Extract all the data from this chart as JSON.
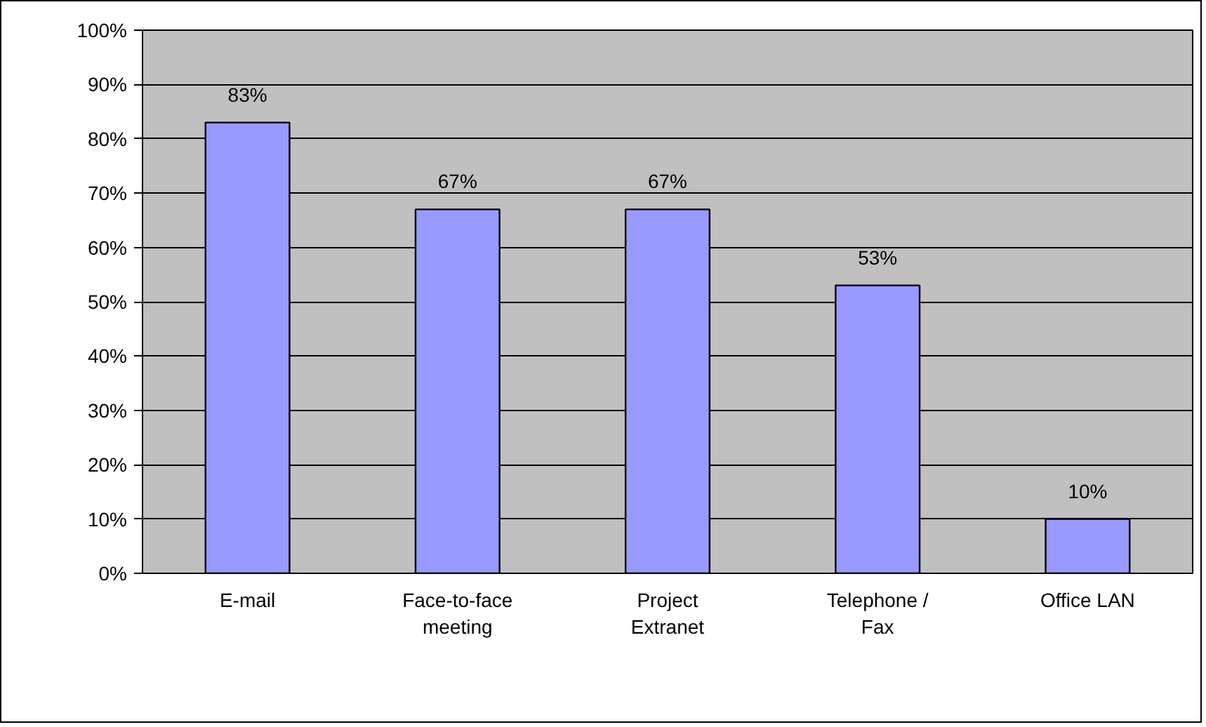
{
  "chart_data": {
    "type": "bar",
    "categories": [
      "E-mail",
      "Face-to-face meeting",
      "Project Extranet",
      "Telephone / Fax",
      "Office LAN"
    ],
    "values": [
      83,
      67,
      67,
      53,
      10
    ],
    "color": "#9999ff",
    "value_labels": [
      "83%",
      "67%",
      "67%",
      "53%",
      "10%"
    ],
    "ylim": [
      0,
      100
    ],
    "yticks": [
      {
        "value": 0,
        "label": "0%"
      },
      {
        "value": 10,
        "label": "10%"
      },
      {
        "value": 20,
        "label": "20%"
      },
      {
        "value": 30,
        "label": "30%"
      },
      {
        "value": 40,
        "label": "40%"
      },
      {
        "value": 50,
        "label": "50%"
      },
      {
        "value": 60,
        "label": "60%"
      },
      {
        "value": 70,
        "label": "70%"
      },
      {
        "value": 80,
        "label": "80%"
      },
      {
        "value": 90,
        "label": "90%"
      },
      {
        "value": 100,
        "label": "100%"
      }
    ],
    "grid": "y"
  }
}
